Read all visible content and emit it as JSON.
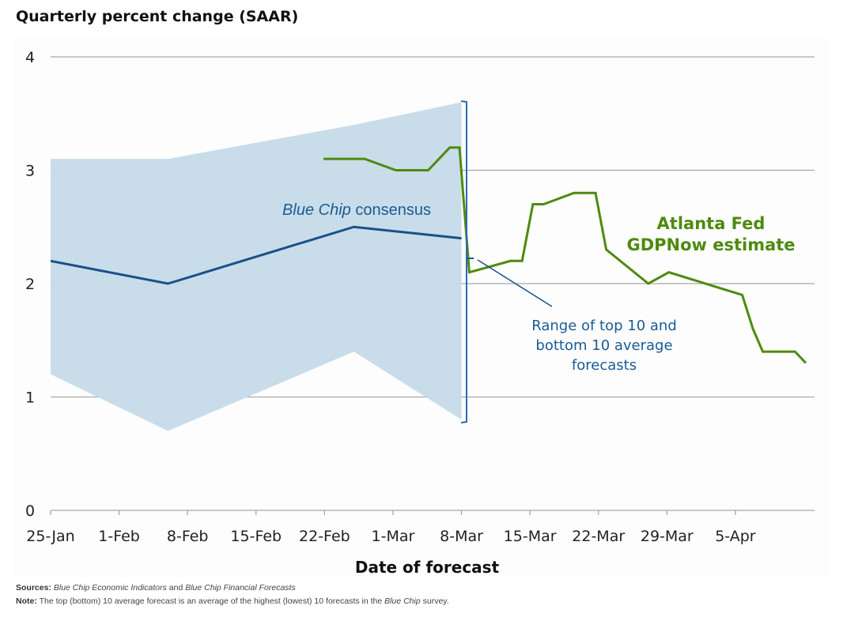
{
  "chart_data": {
    "type": "line",
    "title": "Quarterly percent change (SAAR)",
    "xlabel": "Date of forecast",
    "ylabel": "",
    "ylim": [
      0,
      4
    ],
    "yticks": [
      "0",
      "1",
      "2",
      "3",
      "4"
    ],
    "xticks": [
      "25-Jan",
      "1-Feb",
      "8-Feb",
      "15-Feb",
      "22-Feb",
      "1-Mar",
      "8-Mar",
      "15-Mar",
      "22-Mar",
      "29-Mar",
      "5-Apr"
    ],
    "x_unit": "days since 25-Jan",
    "xlim": [
      0,
      77
    ],
    "grid": true,
    "series": [
      {
        "name": "Blue Chip consensus",
        "type": "line",
        "color": "#1a4f8b",
        "points": [
          [
            0,
            2.2
          ],
          [
            12,
            2.0
          ],
          [
            31,
            2.5
          ],
          [
            42,
            2.4
          ]
        ]
      },
      {
        "name": "Range of top 10 and bottom 10 average forecasts",
        "type": "area-band",
        "color": "#c5dbe8",
        "points": [
          {
            "x": 0,
            "low": 1.2,
            "high": 3.1
          },
          {
            "x": 12,
            "low": 0.7,
            "high": 3.1
          },
          {
            "x": 31,
            "low": 1.4,
            "high": 3.4
          },
          {
            "x": 42,
            "low": 0.8,
            "high": 3.6
          }
        ]
      },
      {
        "name": "Atlanta Fed GDPNow estimate",
        "type": "line",
        "color": "#4e8a0e",
        "points": [
          [
            27.9,
            3.1
          ],
          [
            32.1,
            3.1
          ],
          [
            35.3,
            3.0
          ],
          [
            38.6,
            3.0
          ],
          [
            40.8,
            3.2
          ],
          [
            41.8,
            3.2
          ],
          [
            42.8,
            2.1
          ],
          [
            47.0,
            2.2
          ],
          [
            48.2,
            2.2
          ],
          [
            49.3,
            2.7
          ],
          [
            50.4,
            2.7
          ],
          [
            53.5,
            2.8
          ],
          [
            55.7,
            2.8
          ],
          [
            56.8,
            2.3
          ],
          [
            61.1,
            2.0
          ],
          [
            63.2,
            2.1
          ],
          [
            70.7,
            1.9
          ],
          [
            71.8,
            1.6
          ],
          [
            72.8,
            1.4
          ],
          [
            76.1,
            1.4
          ],
          [
            77.2,
            1.3
          ]
        ]
      }
    ],
    "annotations": {
      "blue_chip_italic": "Blue Chip",
      "blue_chip_rest": " consensus",
      "gdpnow_line1": "Atlanta Fed",
      "gdpnow_line2": "GDPNow estimate",
      "range_line1": "Range of top 10 and",
      "range_line2": "bottom 10 average",
      "range_line3": "forecasts"
    }
  },
  "footer": {
    "sources_label": "Sources:",
    "sources_italic1": "Blue Chip Economic Indicators",
    "sources_mid": " and ",
    "sources_italic2": "Blue Chip Financial Forecasts",
    "note_label": "Note:",
    "note_text": " The top (bottom) 10 average forecast is an average of the highest (lowest) 10 forecasts in the ",
    "note_italic": "Blue Chip",
    "note_end": " survey."
  }
}
